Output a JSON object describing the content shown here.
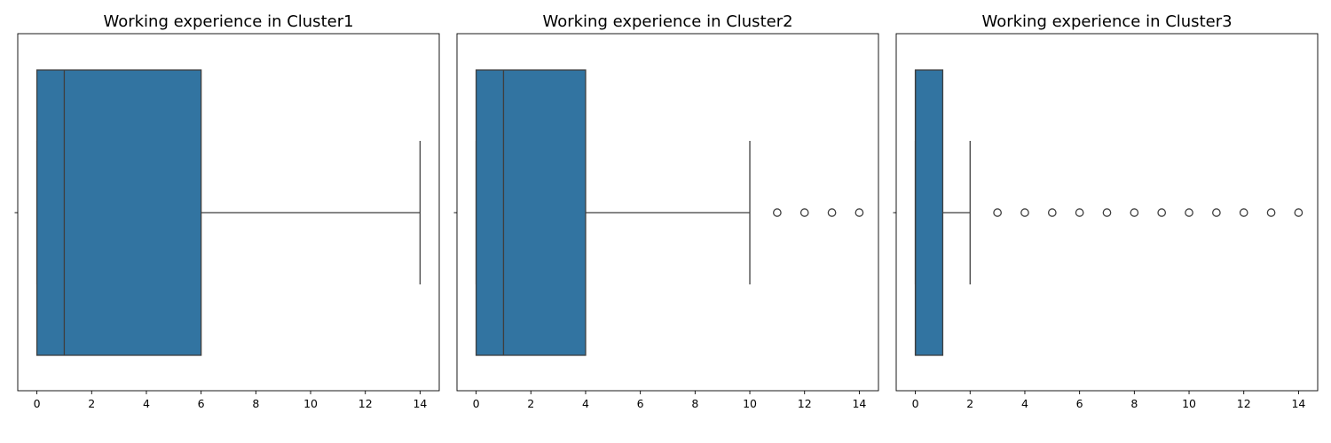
{
  "colors": {
    "box": "#3274a1",
    "line": "#3f3f3f",
    "axes": "#000000"
  },
  "chart_data": [
    {
      "type": "box",
      "title": "Working experience in Cluster1",
      "xlim": [
        -0.7,
        14.7
      ],
      "xticks": [
        0,
        2,
        4,
        6,
        8,
        10,
        12,
        14
      ],
      "tick_labels": [
        "0",
        "2",
        "4",
        "6",
        "8",
        "10",
        "12",
        "14"
      ],
      "q1": 0,
      "median": 1,
      "q3": 6,
      "whisker_low": 0,
      "whisker_high": 14,
      "outliers": []
    },
    {
      "type": "box",
      "title": "Working experience in Cluster2",
      "xlim": [
        -0.7,
        14.7
      ],
      "xticks": [
        0,
        2,
        4,
        6,
        8,
        10,
        12,
        14
      ],
      "tick_labels": [
        "0",
        "2",
        "4",
        "6",
        "8",
        "10",
        "12",
        "14"
      ],
      "q1": 0,
      "median": 1,
      "q3": 4,
      "whisker_low": 0,
      "whisker_high": 10,
      "outliers": [
        11,
        12,
        13,
        14
      ]
    },
    {
      "type": "box",
      "title": "Working experience in Cluster3",
      "xlim": [
        -0.7,
        14.7
      ],
      "xticks": [
        0,
        2,
        4,
        6,
        8,
        10,
        12,
        14
      ],
      "tick_labels": [
        "0",
        "2",
        "4",
        "6",
        "8",
        "10",
        "12",
        "14"
      ],
      "q1": 0,
      "median": 0,
      "q3": 1,
      "whisker_low": 0,
      "whisker_high": 2,
      "outliers": [
        3,
        4,
        5,
        6,
        7,
        8,
        9,
        10,
        11,
        12,
        13,
        14
      ]
    }
  ]
}
